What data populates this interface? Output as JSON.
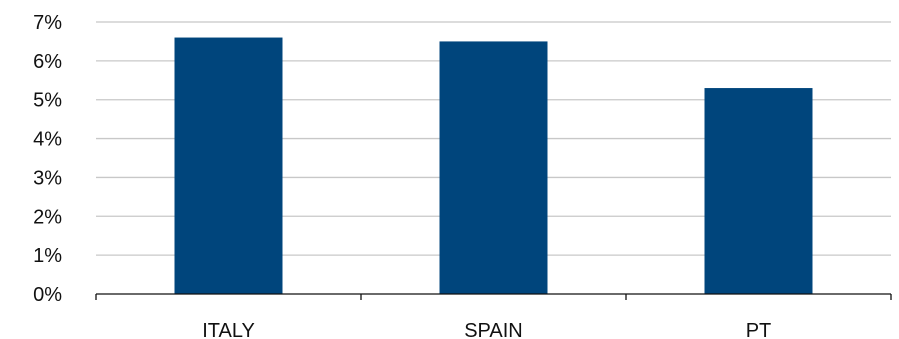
{
  "chart_data": {
    "type": "bar",
    "categories": [
      "ITALY",
      "SPAIN",
      "PT"
    ],
    "values": [
      6.6,
      6.5,
      5.3
    ],
    "value_unit": "%",
    "yticks": [
      "0%",
      "1%",
      "2%",
      "3%",
      "4%",
      "5%",
      "6%",
      "7%"
    ],
    "ylim": [
      0,
      7
    ],
    "grid": true,
    "legend": "none",
    "title": "",
    "xlabel": "",
    "ylabel": "",
    "colors": {
      "bar": "#00457C"
    }
  }
}
